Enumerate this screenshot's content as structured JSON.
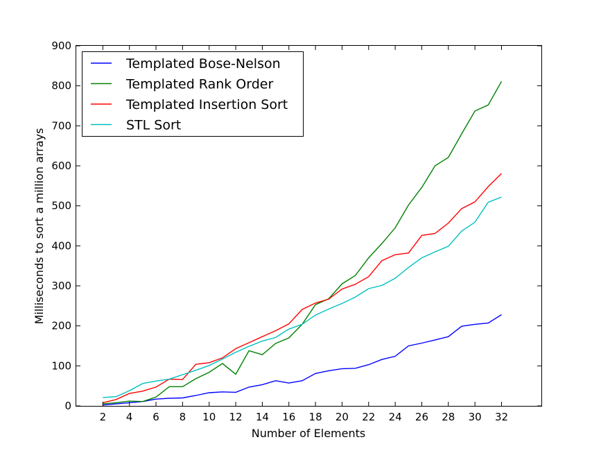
{
  "chart_data": {
    "type": "line",
    "xlabel": "Number of Elements",
    "ylabel": "Milliseconds to sort a million arrays",
    "xlim": [
      0,
      35
    ],
    "ylim": [
      0,
      900
    ],
    "x_ticks": [
      2,
      4,
      6,
      8,
      10,
      12,
      14,
      16,
      18,
      20,
      22,
      24,
      26,
      28,
      30,
      32
    ],
    "y_ticks": [
      0,
      100,
      200,
      300,
      400,
      500,
      600,
      700,
      800,
      900
    ],
    "legend_position": "top-left",
    "grid": false,
    "x": [
      2,
      3,
      4,
      5,
      6,
      7,
      8,
      9,
      10,
      11,
      12,
      13,
      14,
      15,
      16,
      17,
      18,
      19,
      20,
      21,
      22,
      23,
      24,
      25,
      26,
      27,
      28,
      29,
      30,
      31,
      32
    ],
    "series": [
      {
        "name": "Templated Bose-Nelson",
        "color": "#0000ff",
        "values": [
          2,
          5,
          8,
          11,
          17,
          19,
          20,
          26,
          33,
          35,
          34,
          47,
          53,
          63,
          57,
          63,
          81,
          88,
          93,
          94,
          103,
          116,
          124,
          150,
          157,
          165,
          173,
          199,
          204,
          207,
          228
        ]
      },
      {
        "name": "Templated Rank Order",
        "color": "#008000",
        "values": [
          5,
          8,
          12,
          11,
          22,
          48,
          48,
          68,
          84,
          106,
          79,
          138,
          128,
          156,
          170,
          204,
          253,
          268,
          305,
          326,
          370,
          406,
          445,
          502,
          546,
          600,
          621,
          680,
          737,
          752,
          811
        ]
      },
      {
        "name": "Templated Insertion Sort",
        "color": "#ff0000",
        "values": [
          8,
          16,
          31,
          37,
          47,
          67,
          66,
          104,
          108,
          120,
          143,
          158,
          173,
          188,
          205,
          241,
          257,
          267,
          292,
          304,
          323,
          363,
          378,
          382,
          426,
          431,
          457,
          493,
          510,
          548,
          581
        ]
      },
      {
        "name": "STL Sort",
        "color": "#00bfbf",
        "values": [
          21,
          23,
          38,
          56,
          62,
          67,
          78,
          89,
          101,
          117,
          134,
          149,
          162,
          171,
          192,
          204,
          227,
          242,
          256,
          272,
          293,
          301,
          319,
          346,
          370,
          385,
          399,
          437,
          459,
          509,
          522
        ]
      }
    ]
  }
}
